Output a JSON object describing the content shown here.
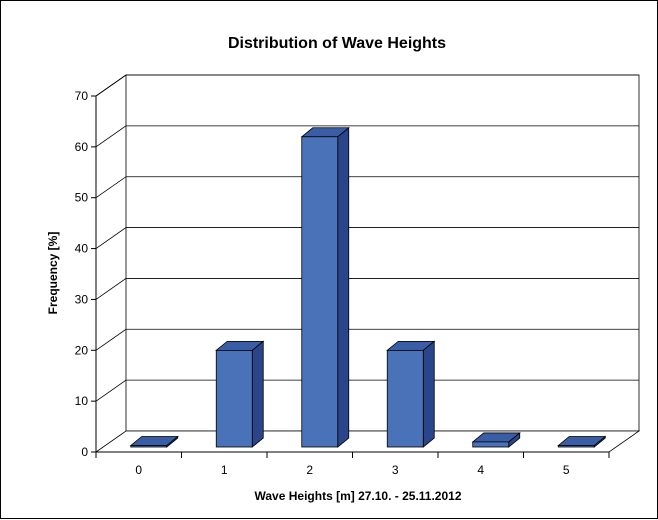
{
  "chart_data": {
    "type": "bar",
    "title": "Distribution of Wave Heights",
    "xlabel": "Wave Heights [m]  27.10. - 25.11.2012",
    "ylabel": "Frequency [%]",
    "categories": [
      "0",
      "1",
      "2",
      "3",
      "4",
      "5"
    ],
    "values": [
      0,
      19,
      61,
      19,
      1,
      0
    ],
    "y_ticks": [
      "0",
      "10",
      "20",
      "30",
      "40",
      "50",
      "60",
      "70"
    ],
    "ylim": [
      0,
      70
    ],
    "grid": true,
    "legend": "none",
    "style": "3d",
    "colors": {
      "bar_front": "#4a72b8",
      "bar_side": "#2a4589",
      "bar_top": "#3a5ea6",
      "outline": "#000000"
    }
  }
}
